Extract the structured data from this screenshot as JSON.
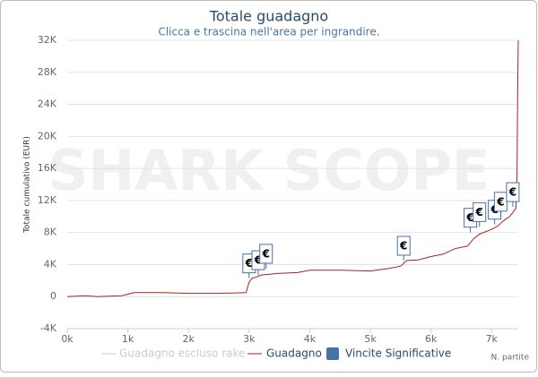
{
  "chart_data": {
    "type": "line",
    "title": "Totale guadagno",
    "subtitle": "Clicca e trascina nell'area per ingrandire.",
    "ylabel": "Totale cumulativo (EUR)",
    "xlabel": "N. partite",
    "watermark": "SHARK SCOPE",
    "xlim": [
      0,
      7440
    ],
    "xticks": [
      {
        "value": 0,
        "label": "0k"
      },
      {
        "value": 1000,
        "label": "1k"
      },
      {
        "value": 2000,
        "label": "2k"
      },
      {
        "value": 3000,
        "label": "3k"
      },
      {
        "value": 4000,
        "label": "4k"
      },
      {
        "value": 5000,
        "label": "5k"
      },
      {
        "value": 6000,
        "label": "6k"
      },
      {
        "value": 7000,
        "label": "7k"
      }
    ],
    "ylim": [
      -4000,
      32000
    ],
    "yticks": [
      {
        "value": -4000,
        "label": "-4K"
      },
      0,
      {
        "value": 4000,
        "label": "4K"
      },
      {
        "value": 8000,
        "label": "8K"
      },
      {
        "value": 12000,
        "label": "12K"
      },
      {
        "value": 16000,
        "label": "16K"
      },
      {
        "value": 20000,
        "label": "20K"
      },
      {
        "value": 24000,
        "label": "24K"
      },
      {
        "value": 28000,
        "label": "28K"
      },
      {
        "value": 32000,
        "label": "32K"
      }
    ],
    "grid": true,
    "series": [
      {
        "name": "Guadagno escluso rake",
        "color": "#cccccc",
        "visible": false
      },
      {
        "name": "Guadagno",
        "color": "#aa2222",
        "x": [
          0,
          300,
          500,
          900,
          1000,
          1100,
          1600,
          2000,
          2500,
          2950,
          3000,
          3050,
          3100,
          3200,
          3500,
          3800,
          4000,
          4500,
          5000,
          5300,
          5500,
          5600,
          5800,
          6000,
          6200,
          6400,
          6600,
          6700,
          6800,
          7000,
          7100,
          7200,
          7300,
          7350,
          7400,
          7420,
          7430,
          7440
        ],
        "values": [
          0,
          100,
          0,
          100,
          300,
          500,
          500,
          400,
          400,
          500,
          1800,
          2300,
          2400,
          2700,
          2900,
          3000,
          3300,
          3300,
          3200,
          3500,
          3800,
          4500,
          4600,
          5000,
          5300,
          6000,
          6300,
          7200,
          7800,
          8400,
          8800,
          9500,
          10000,
          10500,
          11000,
          15000,
          25000,
          32000
        ]
      }
    ],
    "flags": {
      "name": "Vincite Significative",
      "color": "#4572a7",
      "label": "€",
      "x": [
        3000,
        3150,
        3280,
        5550,
        6650,
        6800,
        7050,
        7150,
        7350
      ],
      "values": [
        2300,
        2700,
        3500,
        4500,
        8000,
        8700,
        9000,
        10000,
        11200
      ]
    }
  }
}
